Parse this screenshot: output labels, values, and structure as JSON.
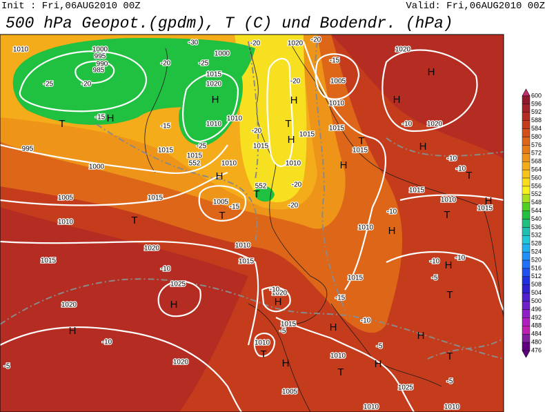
{
  "header": {
    "init": "Init : Fri,06AUG2010 00Z",
    "valid": "Valid: Fri,06AUG2010 00Z",
    "title": "500 hPa Geopot.(gpdm), T (C) und Bodendr. (hPa)"
  },
  "colorbar": {
    "levels": [
      "600",
      "596",
      "592",
      "588",
      "584",
      "580",
      "576",
      "572",
      "568",
      "564",
      "560",
      "556",
      "552",
      "548",
      "544",
      "540",
      "536",
      "532",
      "528",
      "524",
      "520",
      "516",
      "512",
      "508",
      "504",
      "500",
      "496",
      "492",
      "488",
      "484",
      "480",
      "476"
    ],
    "colors": [
      "#c4306e",
      "#8e1a2c",
      "#a3222a",
      "#b52d22",
      "#c53c1c",
      "#d2501a",
      "#dd6618",
      "#e67c18",
      "#ee9418",
      "#f4ac1a",
      "#f8c41c",
      "#fadc1c",
      "#f6f020",
      "#a8e020",
      "#50d020",
      "#20c040",
      "#20c080",
      "#20c0b0",
      "#20c8d8",
      "#20b0f0",
      "#2090f8",
      "#2070f8",
      "#2050f0",
      "#2030e0",
      "#3020d0",
      "#5020d0",
      "#7020c8",
      "#9020c8",
      "#b020c0",
      "#c020b0",
      "#8020a0",
      "#600080"
    ]
  },
  "map": {
    "labels": [
      "1010",
      "1000",
      "995",
      "990",
      "985",
      "-25",
      "-20",
      "T",
      "H",
      "-15",
      "995",
      "1000",
      "1005",
      "1015",
      "1010",
      "T",
      "1015",
      "1020",
      "-10",
      "1025",
      "H",
      "1020",
      "H",
      "-10",
      "1020",
      "-5",
      "-30",
      "1000",
      "-25",
      "-20",
      "1015",
      "1020",
      "H",
      "1010",
      "1010",
      "-15",
      "1015",
      "-25",
      "1015",
      "552",
      "1010",
      "H",
      "1005",
      "-15",
      "T",
      "1010",
      "1015",
      "-20",
      "1020",
      "-20",
      "-15",
      "1005",
      "-20",
      "H",
      "1010",
      "-20",
      "1015",
      "T",
      "H",
      "1015",
      "1015",
      "T",
      "1015",
      "1010",
      "H",
      "-20",
      "552",
      "T",
      "-20",
      "1010",
      "H",
      "1015",
      "-15",
      "1020",
      "H",
      "-10",
      "1015",
      "-5",
      "H",
      "-10",
      "1010",
      "T",
      "1010",
      "H",
      "-5",
      "T",
      "H",
      "1005",
      "1010",
      "1025",
      "1010",
      "-5",
      "T",
      "H",
      "1020",
      "H",
      "H",
      "1020",
      "-10",
      "H",
      "-10",
      "-10",
      "T",
      "1015",
      "1010",
      "-10",
      "T",
      "H",
      "1015",
      "-10",
      "-10",
      "H",
      "-5",
      "T"
    ]
  }
}
